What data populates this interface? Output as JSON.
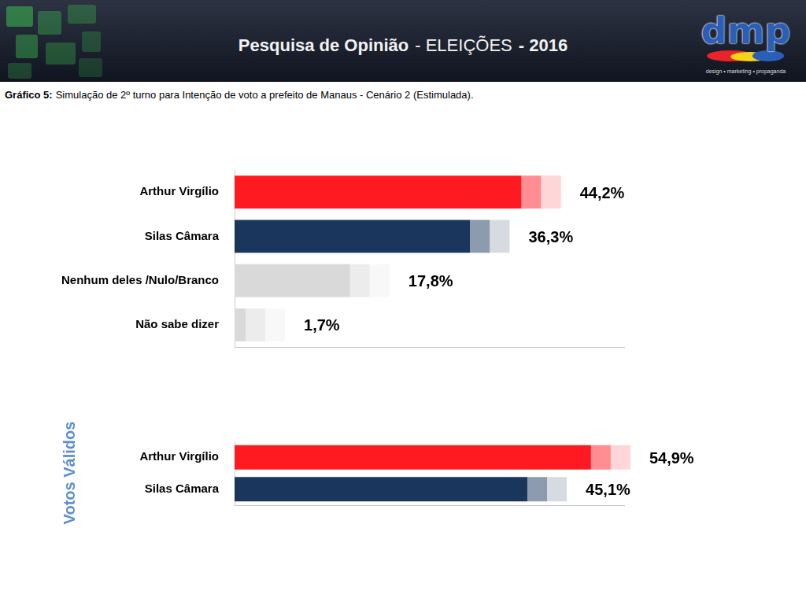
{
  "header": {
    "title_parts": [
      "Pesquisa de Opinião",
      "- ELEIÇÕES",
      "- 2016"
    ],
    "logo": "dmp",
    "logo_tagline": "design • marketing • propaganda"
  },
  "caption_label": "Gráfico 5:",
  "caption": "Simulação de 2º turno para Intenção de voto a prefeito de Manaus - Cenário 2 (Estimulada).",
  "chart_data": [
    {
      "type": "bar",
      "orientation": "horizontal",
      "categories": [
        "Arthur Virgílio",
        "Silas Câmara",
        "Nenhum deles /Nulo/Branco",
        "Não sabe dizer"
      ],
      "values": [
        44.2,
        36.3,
        17.8,
        1.7
      ],
      "value_labels": [
        "44,2%",
        "36,3%",
        "17,8%",
        "1,7%"
      ],
      "colors": [
        "#ff1a22",
        "#1b365d",
        "#d9d9d9",
        "#d9d9d9"
      ],
      "xlim": [
        0,
        60
      ],
      "grid": false,
      "data_labels": true,
      "tick_labels": "y"
    },
    {
      "type": "bar",
      "orientation": "horizontal",
      "ylabel": "Votos Válidos",
      "categories": [
        "Arthur Virgílio",
        "Silas Câmara"
      ],
      "values": [
        54.9,
        45.1
      ],
      "value_labels": [
        "54,9%",
        "45,1%"
      ],
      "colors": [
        "#ff1a22",
        "#1b365d"
      ],
      "xlim": [
        0,
        60
      ],
      "grid": false,
      "data_labels": true,
      "tick_labels": "y"
    }
  ]
}
